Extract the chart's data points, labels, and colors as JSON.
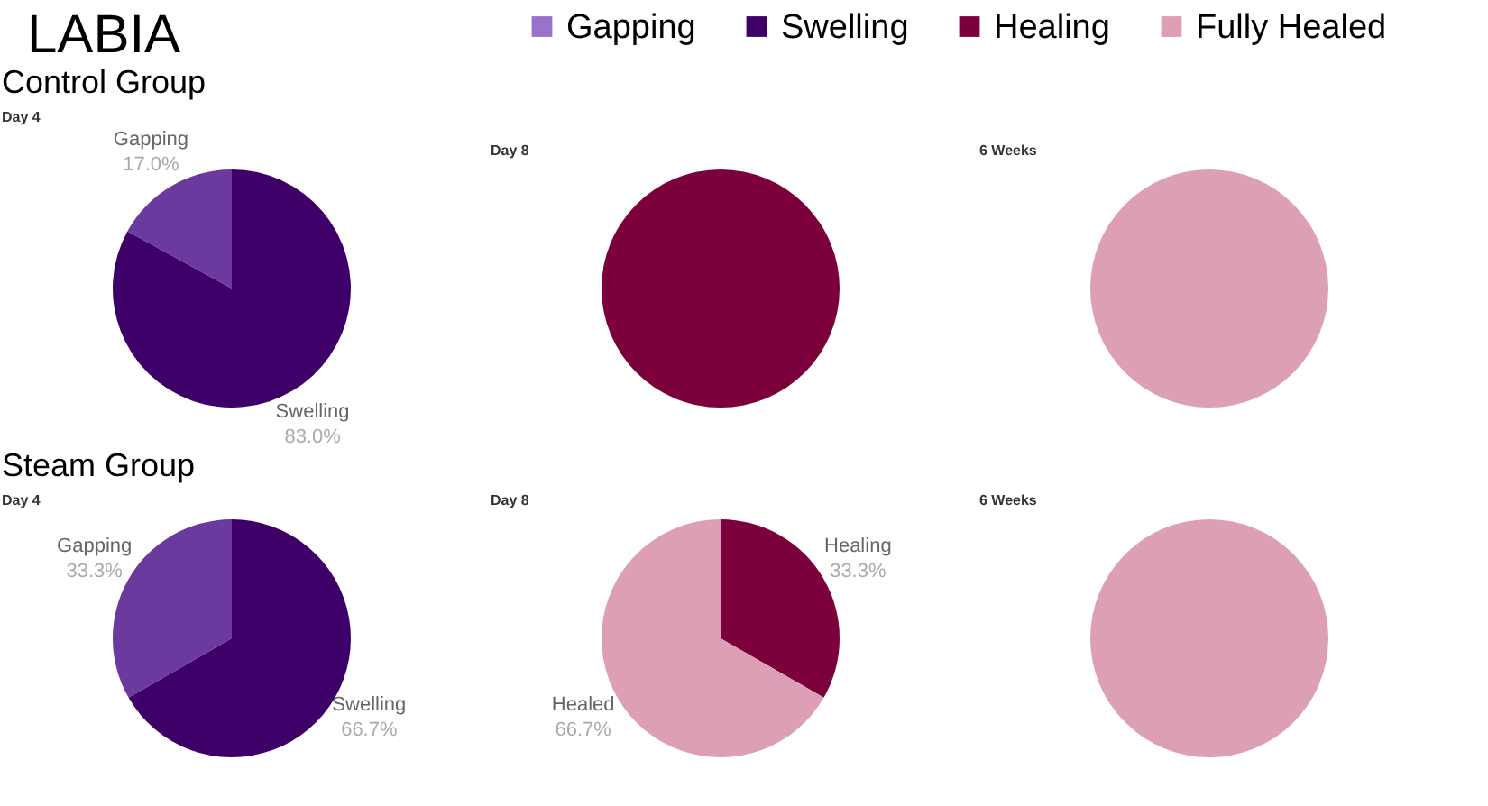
{
  "chart_data": [
    {
      "type": "other",
      "title": "LABIA",
      "categories": [
        "Gapping",
        "Swelling",
        "Healing",
        "Fully Healed"
      ],
      "colors": [
        "#9b72c9",
        "#3e0068",
        "#7b003b",
        "#dc9fb6"
      ]
    },
    {
      "type": "pie",
      "subtitle": "Control Group",
      "title": "Day 4",
      "categories": [
        "Swelling",
        "Gapping"
      ],
      "values": [
        83.0,
        17.0
      ],
      "colors": [
        "#3e0068",
        "#6b3a9e"
      ],
      "value_labels": [
        "83.0%",
        "17.0%"
      ]
    },
    {
      "type": "pie",
      "title": "Day 8",
      "categories": [
        null
      ],
      "values": [
        100
      ],
      "colors": [
        "#7b003b"
      ]
    },
    {
      "type": "pie",
      "title": "6 Weeks",
      "categories": [
        null
      ],
      "values": [
        100
      ],
      "colors": [
        "#dc9fb6"
      ]
    },
    {
      "type": "pie",
      "subtitle": "Steam Group",
      "title": "Day 4",
      "categories": [
        "Swelling",
        "Gapping"
      ],
      "values": [
        66.7,
        33.3
      ],
      "colors": [
        "#3e0068",
        "#6b3a9e"
      ],
      "value_labels": [
        "66.7%",
        "33.3%"
      ]
    },
    {
      "type": "pie",
      "title": "Day 8",
      "categories": [
        "Healing",
        "Healed"
      ],
      "values": [
        33.3,
        66.7
      ],
      "colors": [
        "#7b003b",
        "#dc9fb6"
      ],
      "value_labels": [
        "33.3%",
        "66.7%"
      ]
    },
    {
      "type": "pie",
      "title": "6 Weeks",
      "categories": [
        null
      ],
      "values": [
        100
      ],
      "colors": [
        "#dc9fb6"
      ]
    }
  ]
}
